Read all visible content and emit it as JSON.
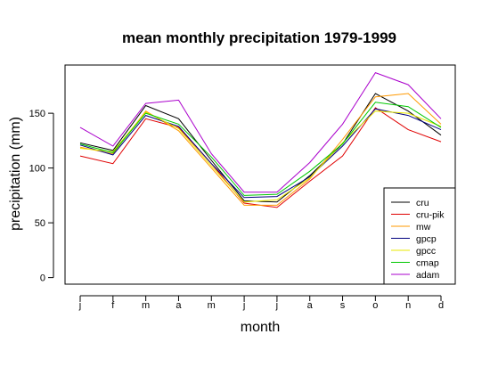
{
  "chart_data": {
    "type": "line",
    "title": "mean monthly precipitation 1979-1999",
    "xlabel": "month",
    "ylabel": "precipitation (mm)",
    "categories": [
      "j",
      "f",
      "m",
      "a",
      "m",
      "j",
      "j",
      "a",
      "s",
      "o",
      "n",
      "d"
    ],
    "ylim": [
      -6,
      194
    ],
    "yticks": [
      0,
      50,
      100,
      150
    ],
    "grid": false,
    "legend_position": "bottom-right",
    "series": [
      {
        "name": "cru",
        "color": "#000000",
        "values": [
          123,
          116,
          157,
          145,
          107,
          70,
          69,
          93,
          122,
          168,
          152,
          130
        ]
      },
      {
        "name": "cru-pik",
        "color": "#e00000",
        "values": [
          111,
          104,
          145,
          137,
          104,
          68,
          64,
          88,
          111,
          155,
          135,
          124
        ]
      },
      {
        "name": "mw",
        "color": "#ff9900",
        "values": [
          119,
          113,
          152,
          134,
          100,
          66,
          66,
          90,
          126,
          165,
          168,
          140
        ]
      },
      {
        "name": "gpcp",
        "color": "#00007f",
        "values": [
          121,
          112,
          148,
          138,
          104,
          73,
          74,
          92,
          120,
          154,
          148,
          135
        ]
      },
      {
        "name": "gpcc",
        "color": "#e8e800",
        "values": [
          118,
          115,
          151,
          136,
          102,
          69,
          71,
          91,
          123,
          152,
          150,
          138
        ]
      },
      {
        "name": "cmap",
        "color": "#00c800",
        "values": [
          122,
          114,
          150,
          140,
          110,
          75,
          76,
          97,
          122,
          160,
          156,
          137
        ]
      },
      {
        "name": "adam",
        "color": "#aa00cc",
        "values": [
          137,
          120,
          159,
          162,
          113,
          78,
          78,
          105,
          140,
          187,
          176,
          145
        ]
      }
    ]
  }
}
